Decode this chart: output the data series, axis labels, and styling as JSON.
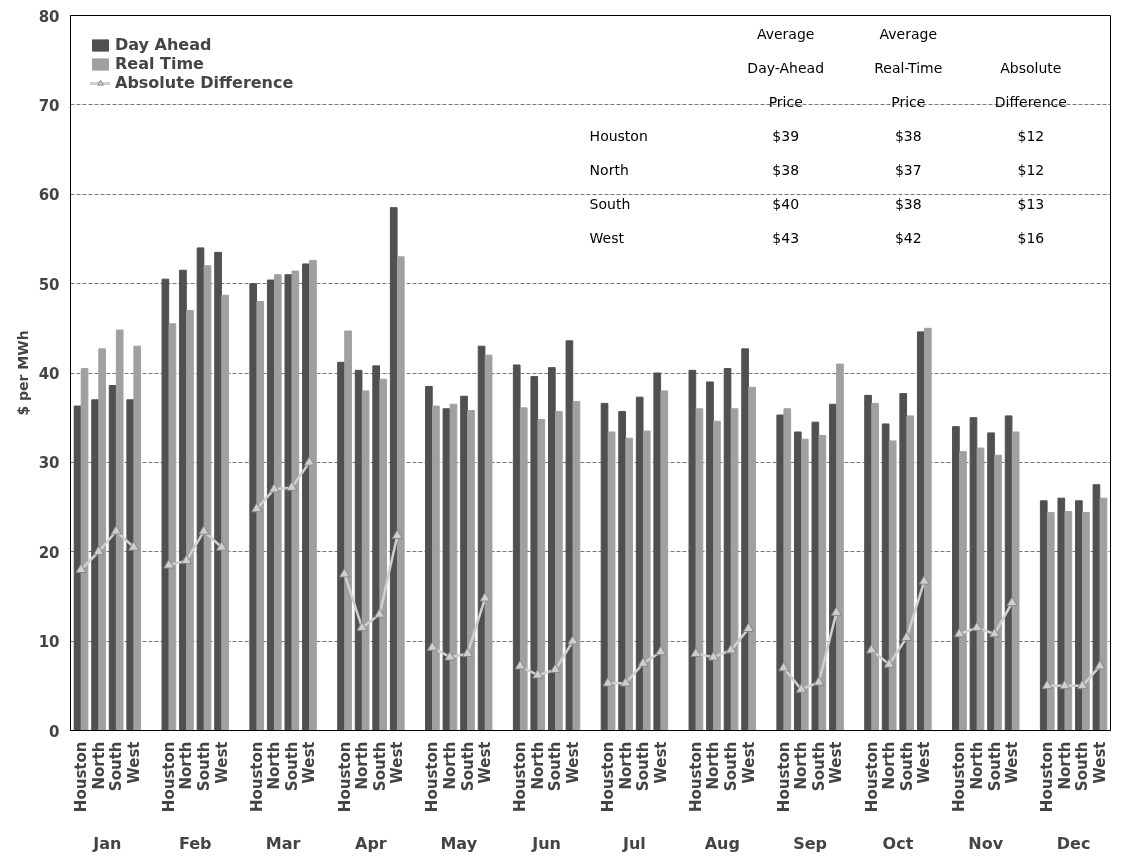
{
  "chart_data": {
    "type": "bar",
    "ylabel": "$ per MWh",
    "categories": [
      "Houston",
      "North",
      "South",
      "West",
      null,
      "Houston",
      "North",
      "South",
      "West",
      null,
      "Houston",
      "North",
      "South",
      "West",
      null,
      "Houston",
      "North",
      "South",
      "West",
      null,
      "Houston",
      "North",
      "South",
      "West",
      null,
      "Houston",
      "North",
      "South",
      "West",
      null,
      "Houston",
      "North",
      "South",
      "West",
      null,
      "Houston",
      "North",
      "South",
      "West",
      null,
      "Houston",
      "North",
      "South",
      "West",
      null,
      "Houston",
      "North",
      "South",
      "West",
      null,
      "Houston",
      "North",
      "South",
      "West",
      null,
      "Houston",
      "North",
      "South",
      "West"
    ],
    "series": [
      {
        "name": "Day Ahead",
        "color": "#505050",
        "values": [
          36.3,
          37,
          38.6,
          37,
          null,
          50.5,
          51.5,
          54,
          53.5,
          null,
          50,
          50.4,
          51,
          52.2,
          null,
          41.2,
          40.3,
          40.8,
          58.5,
          null,
          38.5,
          36,
          37.4,
          43,
          null,
          40.9,
          39.6,
          40.6,
          43.6,
          null,
          36.6,
          35.7,
          37.3,
          40,
          null,
          40.3,
          39,
          40.5,
          42.7,
          null,
          35.3,
          33.4,
          34.5,
          36.5,
          null,
          37.5,
          34.3,
          37.7,
          44.6,
          null,
          34,
          35,
          33.3,
          35.2,
          null,
          25.7,
          26,
          25.7,
          27.5
        ]
      },
      {
        "name": "Real Time",
        "color": "#a0a0a0",
        "values": [
          40.5,
          42.7,
          44.8,
          43,
          null,
          45.5,
          47,
          52,
          48.7,
          null,
          48,
          51,
          51.4,
          52.6,
          null,
          44.7,
          38,
          39.3,
          53,
          null,
          36.3,
          36.5,
          35.8,
          42,
          null,
          36.1,
          34.8,
          35.7,
          36.8,
          null,
          33.4,
          32.7,
          33.5,
          38,
          null,
          36,
          34.6,
          36,
          38.4,
          null,
          36,
          32.6,
          33,
          41,
          null,
          36.6,
          32.4,
          35.2,
          45,
          null,
          31.2,
          31.6,
          30.8,
          33.4,
          null,
          24.4,
          24.5,
          24.4,
          26
        ]
      },
      {
        "name": "Absolute Difference",
        "type": "line",
        "color": "#cfcfcf",
        "marker": "triangle",
        "values": [
          18,
          20,
          22.3,
          20.5,
          null,
          18.5,
          19,
          22.3,
          20.5,
          null,
          24.8,
          27,
          27.2,
          30,
          null,
          17.5,
          11.5,
          13,
          21.8,
          null,
          9.3,
          8.2,
          8.6,
          14.8,
          null,
          7.2,
          6.2,
          6.8,
          10,
          null,
          5.3,
          5.3,
          7.5,
          8.8,
          null,
          8.6,
          8.2,
          9,
          11.4,
          null,
          7,
          4.6,
          5.4,
          13.2,
          null,
          9,
          7.4,
          10.4,
          16.7,
          null,
          10.8,
          11.5,
          10.8,
          14.3,
          null,
          5,
          5,
          5,
          7.2
        ]
      }
    ],
    "ylim": [
      0,
      80
    ],
    "yticks": [
      0,
      10,
      20,
      30,
      40,
      50,
      60,
      70,
      80
    ],
    "grid": "y",
    "legend": "top left",
    "annotations": [
      "Jan",
      "Feb",
      "Mar",
      "Apr",
      "May",
      "Jun",
      "Jul",
      "Aug",
      "Sep",
      "Oct",
      "Nov",
      "Dec",
      "Average\nDay-Ahead\nPrice",
      "Average\nReal-Time\nPrice",
      "Absolute\nDifference",
      "Houston",
      "$39",
      "$38",
      "$12",
      "North",
      "$38",
      "$37",
      "$12",
      "South",
      "$40",
      "$38",
      "$13",
      "West",
      "$43",
      "$42",
      "$16"
    ]
  }
}
